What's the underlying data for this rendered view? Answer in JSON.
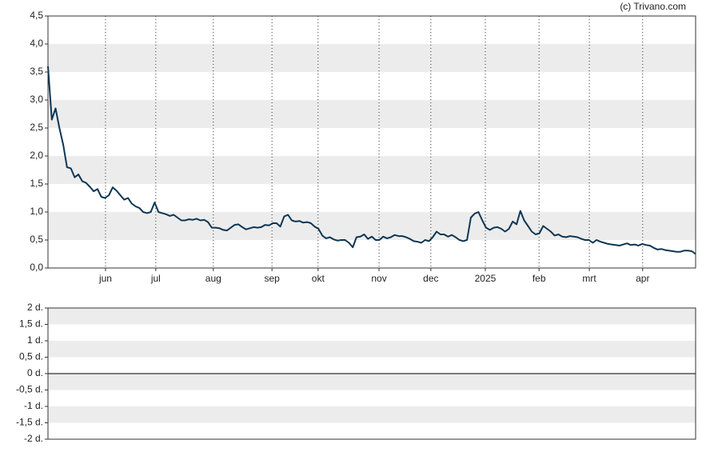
{
  "chart_data": [
    {
      "type": "line",
      "source": "(c) Trivano.com",
      "color": "#0d3654",
      "values": [
        3.6,
        2.65,
        2.85,
        2.5,
        2.2,
        1.8,
        1.78,
        1.62,
        1.67,
        1.55,
        1.52,
        1.45,
        1.37,
        1.41,
        1.27,
        1.25,
        1.3,
        1.44,
        1.38,
        1.3,
        1.22,
        1.25,
        1.15,
        1.1,
        1.07,
        1.0,
        0.98,
        1.0,
        1.17,
        1.0,
        0.98,
        0.96,
        0.93,
        0.95,
        0.9,
        0.85,
        0.85,
        0.87,
        0.86,
        0.88,
        0.85,
        0.86,
        0.82,
        0.72,
        0.72,
        0.71,
        0.68,
        0.67,
        0.72,
        0.77,
        0.78,
        0.73,
        0.69,
        0.71,
        0.73,
        0.72,
        0.73,
        0.77,
        0.76,
        0.8,
        0.8,
        0.74,
        0.92,
        0.95,
        0.85,
        0.83,
        0.84,
        0.81,
        0.82,
        0.8,
        0.74,
        0.7,
        0.58,
        0.53,
        0.55,
        0.51,
        0.49,
        0.5,
        0.5,
        0.45,
        0.37,
        0.55,
        0.56,
        0.6,
        0.52,
        0.56,
        0.5,
        0.5,
        0.56,
        0.53,
        0.55,
        0.59,
        0.57,
        0.57,
        0.55,
        0.52,
        0.48,
        0.47,
        0.45,
        0.5,
        0.48,
        0.55,
        0.65,
        0.6,
        0.6,
        0.56,
        0.59,
        0.55,
        0.5,
        0.48,
        0.5,
        0.9,
        0.97,
        1.0,
        0.85,
        0.72,
        0.68,
        0.72,
        0.73,
        0.7,
        0.65,
        0.7,
        0.83,
        0.78,
        1.02,
        0.85,
        0.75,
        0.65,
        0.6,
        0.62,
        0.75,
        0.7,
        0.65,
        0.58,
        0.6,
        0.56,
        0.55,
        0.57,
        0.56,
        0.55,
        0.52,
        0.5,
        0.5,
        0.45,
        0.5,
        0.47,
        0.45,
        0.43,
        0.42,
        0.41,
        0.4,
        0.42,
        0.44,
        0.41,
        0.42,
        0.4,
        0.43,
        0.41,
        0.4,
        0.36,
        0.33,
        0.34,
        0.32,
        0.31,
        0.3,
        0.29,
        0.29,
        0.31,
        0.31,
        0.3,
        0.25
      ],
      "xlim": [
        0,
        170
      ],
      "xticks": [
        {
          "value": 15.1,
          "label": "jun"
        },
        {
          "value": 28.3,
          "label": "jul"
        },
        {
          "value": 43.4,
          "label": "aug"
        },
        {
          "value": 58.8,
          "label": "sep"
        },
        {
          "value": 70.9,
          "label": "okt"
        },
        {
          "value": 86.9,
          "label": "nov"
        },
        {
          "value": 100.5,
          "label": "dec"
        },
        {
          "value": 114.8,
          "label": "2025"
        },
        {
          "value": 128.9,
          "label": "feb"
        },
        {
          "value": 142.1,
          "label": "mrt"
        },
        {
          "value": 156.1,
          "label": "apr"
        }
      ],
      "ylim": [
        0,
        4.5
      ],
      "yticks": [
        {
          "value": 0,
          "label": "0,0"
        },
        {
          "value": 0.5,
          "label": "0,5"
        },
        {
          "value": 1,
          "label": "1,0"
        },
        {
          "value": 1.5,
          "label": "1,5"
        },
        {
          "value": 2,
          "label": "2,0"
        },
        {
          "value": 2.5,
          "label": "2,5"
        },
        {
          "value": 3,
          "label": "3,0"
        },
        {
          "value": 3.5,
          "label": "3,5"
        },
        {
          "value": 4,
          "label": "4,0"
        },
        {
          "value": 4.5,
          "label": "4,5"
        }
      ],
      "grid": "bands",
      "vgrid": true
    },
    {
      "type": "line",
      "ylim": [
        -2,
        2
      ],
      "yticks": [
        {
          "value": -2,
          "label": "-2 d."
        },
        {
          "value": -1.5,
          "label": "-1,5 d."
        },
        {
          "value": -1,
          "label": "-1 d."
        },
        {
          "value": -0.5,
          "label": "-0,5 d."
        },
        {
          "value": 0,
          "label": "0 d."
        },
        {
          "value": 0.5,
          "label": "0,5 d."
        },
        {
          "value": 1,
          "label": "1 d."
        },
        {
          "value": 1.5,
          "label": "1,5 d."
        },
        {
          "value": 2,
          "label": "2 d."
        }
      ],
      "grid": "bands",
      "zero_line": true
    }
  ]
}
